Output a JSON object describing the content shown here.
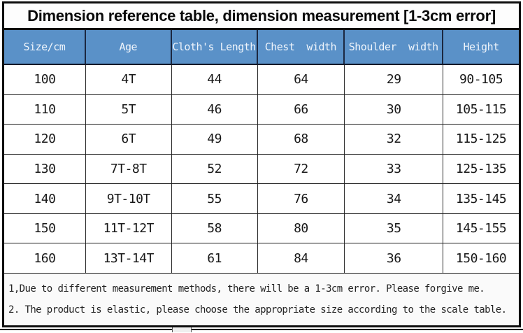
{
  "title": "Dimension reference table, dimension measurement [1-3cm error]",
  "table": {
    "columns": [
      "Size/cm",
      "Age",
      "Cloth's Length",
      "Chest  width",
      "Shoulder  width",
      "Height"
    ],
    "rows": [
      [
        "100",
        "4T",
        "44",
        "64",
        "29",
        "90-105"
      ],
      [
        "110",
        "5T",
        "46",
        "66",
        "30",
        "105-115"
      ],
      [
        "120",
        "6T",
        "49",
        "68",
        "32",
        "115-125"
      ],
      [
        "130",
        "7T-8T",
        "52",
        "72",
        "33",
        "125-135"
      ],
      [
        "140",
        "9T-10T",
        "55",
        "76",
        "34",
        "135-145"
      ],
      [
        "150",
        "11T-12T",
        "58",
        "80",
        "35",
        "145-155"
      ],
      [
        "160",
        "13T-14T",
        "61",
        "84",
        "36",
        "150-160"
      ]
    ]
  },
  "notes": [
    "1,Due to different measurement methods, there will be a 1-3cm error. Please forgive me.",
    "2. The product is elastic, please choose the appropriate size according to the scale table."
  ],
  "colors": {
    "header_bg": "#5a91c8",
    "header_text": "#eef4fb",
    "border": "#0e0e0e",
    "notes_bg": "#fafafa"
  }
}
